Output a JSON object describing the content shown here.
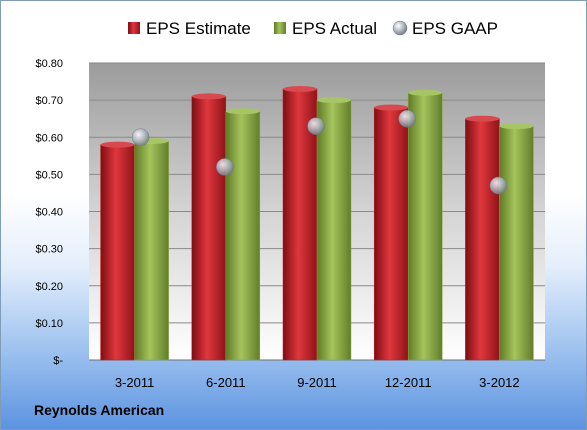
{
  "company": "Reynolds American",
  "colors": {
    "estimate": "#c0202a",
    "actual": "#8aa844",
    "gaap": "#a9b0bb"
  },
  "chart_data": {
    "type": "bar",
    "categories": [
      "3-2011",
      "6-2011",
      "9-2011",
      "12-2011",
      "3-2012"
    ],
    "series": [
      {
        "name": "EPS Estimate",
        "kind": "bar",
        "values": [
          0.58,
          0.71,
          0.73,
          0.68,
          0.65
        ]
      },
      {
        "name": "EPS Actual",
        "kind": "bar",
        "values": [
          0.59,
          0.67,
          0.7,
          0.72,
          0.63
        ]
      },
      {
        "name": "EPS GAAP",
        "kind": "marker",
        "values": [
          0.6,
          0.52,
          0.63,
          0.65,
          0.47
        ]
      }
    ],
    "ylim": [
      0,
      0.8
    ],
    "yticks": [
      0,
      0.1,
      0.2,
      0.3,
      0.4,
      0.5,
      0.6,
      0.7,
      0.8
    ],
    "ytick_labels": [
      "$-",
      "$0.10",
      "$0.20",
      "$0.30",
      "$0.40",
      "$0.50",
      "$0.60",
      "$0.70",
      "$0.80"
    ],
    "grid": true,
    "legend_position": "top"
  }
}
